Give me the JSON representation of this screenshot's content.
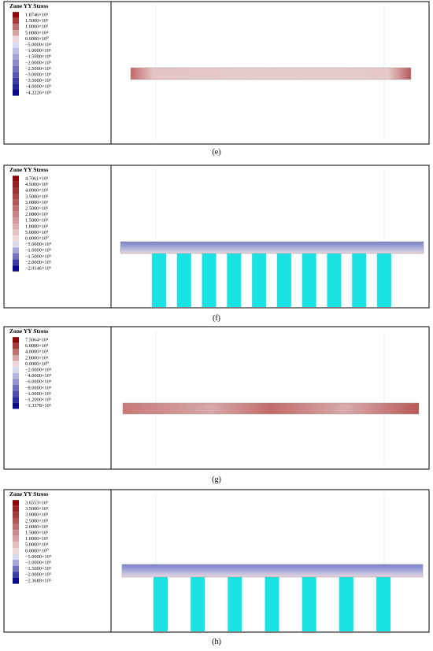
{
  "panels": [
    {
      "legend": {
        "title": "Zone YY Stress",
        "labels": [
          "1.8746×10⁵",
          "1.5000×10⁵",
          "1.0000×10⁵",
          "5.0000×10⁴",
          "0.0000×10⁰",
          "−5.0000×10⁴",
          "−1.0000×10⁵",
          "−1.5000×10⁵",
          "−2.0000×10⁵",
          "−2.5000×10⁵",
          "−3.0000×10⁵",
          "−3.5000×10⁵",
          "−4.0000×10⁵",
          "−4.2226×10⁵"
        ]
      },
      "caption": "(e)"
    },
    {
      "legend": {
        "title": "Zone YY Stress",
        "labels": [
          "4.7061×10⁵",
          "4.5000×10⁵",
          "4.0000×10⁵",
          "3.5000×10⁵",
          "3.0000×10⁵",
          "2.5000×10⁵",
          "2.0000×10⁵",
          "1.5000×10⁵",
          "1.0000×10⁵",
          "5.0000×10⁴",
          "0.0000×10⁰",
          "−5.0000×10⁴",
          "−1.0000×10⁵",
          "−1.5000×10⁵",
          "−2.0000×10⁵",
          "−2.0146×10⁵"
        ]
      },
      "caption": "(f)"
    },
    {
      "legend": {
        "title": "Zone YY Stress",
        "labels": [
          "7.5064×10⁴",
          "6.0000×10⁴",
          "4.0000×10⁴",
          "2.0000×10⁴",
          "0.0000×10⁰",
          "−2.0000×10⁴",
          "−4.0000×10⁴",
          "−6.0000×10⁴",
          "−8.0000×10⁴",
          "−1.0000×10⁵",
          "−1.2000×10⁵",
          "−1.3378×10⁵"
        ]
      },
      "caption": "(g)"
    },
    {
      "legend": {
        "title": "Zone YY Stress",
        "labels": [
          "3.6553×10⁵",
          "3.5000×10⁵",
          "3.0000×10⁵",
          "2.5000×10⁵",
          "2.0000×10⁵",
          "1.5000×10⁵",
          "1.0000×10⁵",
          "5.0000×10⁴",
          "0.0000×10⁰",
          "−5.0000×10⁴",
          "−1.0000×10⁵",
          "−1.5000×10⁵",
          "−2.0000×10⁵",
          "−2.3689×10⁵"
        ]
      },
      "caption": "(h)"
    }
  ]
}
